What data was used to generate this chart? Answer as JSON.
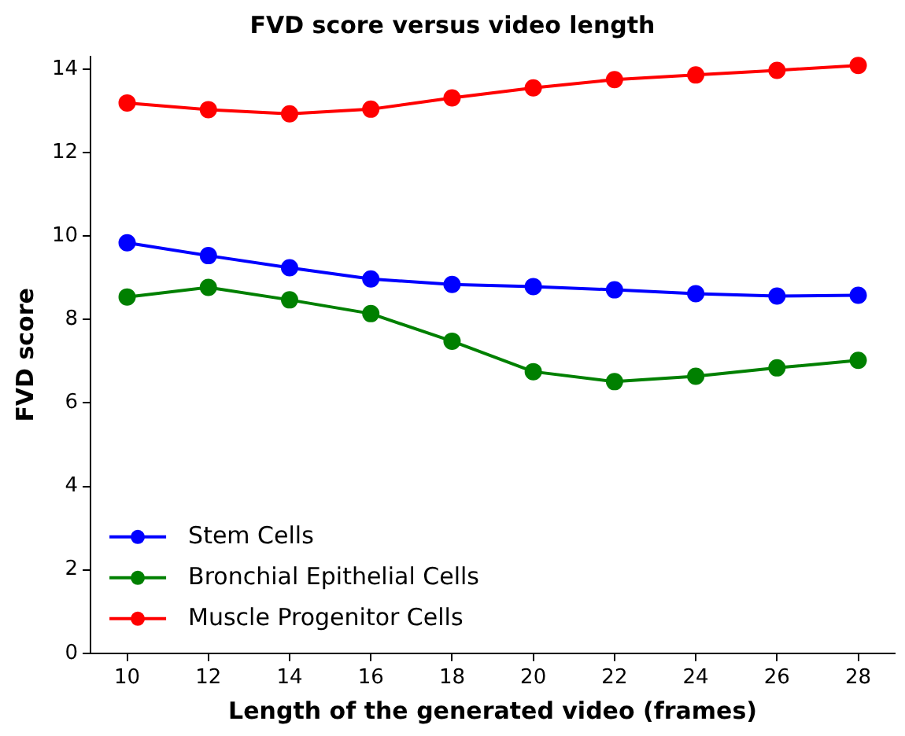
{
  "chart_data": {
    "type": "line",
    "title": "FVD score versus video length",
    "xlabel": "Length of the generated video (frames)",
    "ylabel": "FVD score",
    "x": [
      10,
      12,
      14,
      16,
      18,
      20,
      22,
      24,
      26,
      28
    ],
    "xlim": [
      9.1,
      28.9
    ],
    "xticks": [
      10,
      12,
      14,
      16,
      18,
      20,
      22,
      24,
      26,
      28
    ],
    "ylim": [
      0,
      14.3
    ],
    "yticks": [
      0,
      2,
      4,
      6,
      8,
      10,
      12,
      14
    ],
    "grid": false,
    "legend": "bottom left",
    "marker": "circle",
    "line_style": "solid",
    "series": [
      {
        "name": "Stem Cells",
        "color": "#0000ff",
        "values": [
          9.84,
          9.53,
          9.24,
          8.97,
          8.84,
          8.79,
          8.71,
          8.62,
          8.56,
          8.58
        ]
      },
      {
        "name": "Bronchial Epithelial Cells",
        "color": "#008000",
        "values": [
          8.54,
          8.77,
          8.47,
          8.14,
          7.48,
          6.75,
          6.51,
          6.64,
          6.84,
          7.02
        ]
      },
      {
        "name": "Muscle Progenitor Cells",
        "color": "#ff0000",
        "values": [
          13.19,
          13.03,
          12.93,
          13.04,
          13.31,
          13.55,
          13.75,
          13.86,
          13.97,
          14.09
        ]
      }
    ]
  }
}
